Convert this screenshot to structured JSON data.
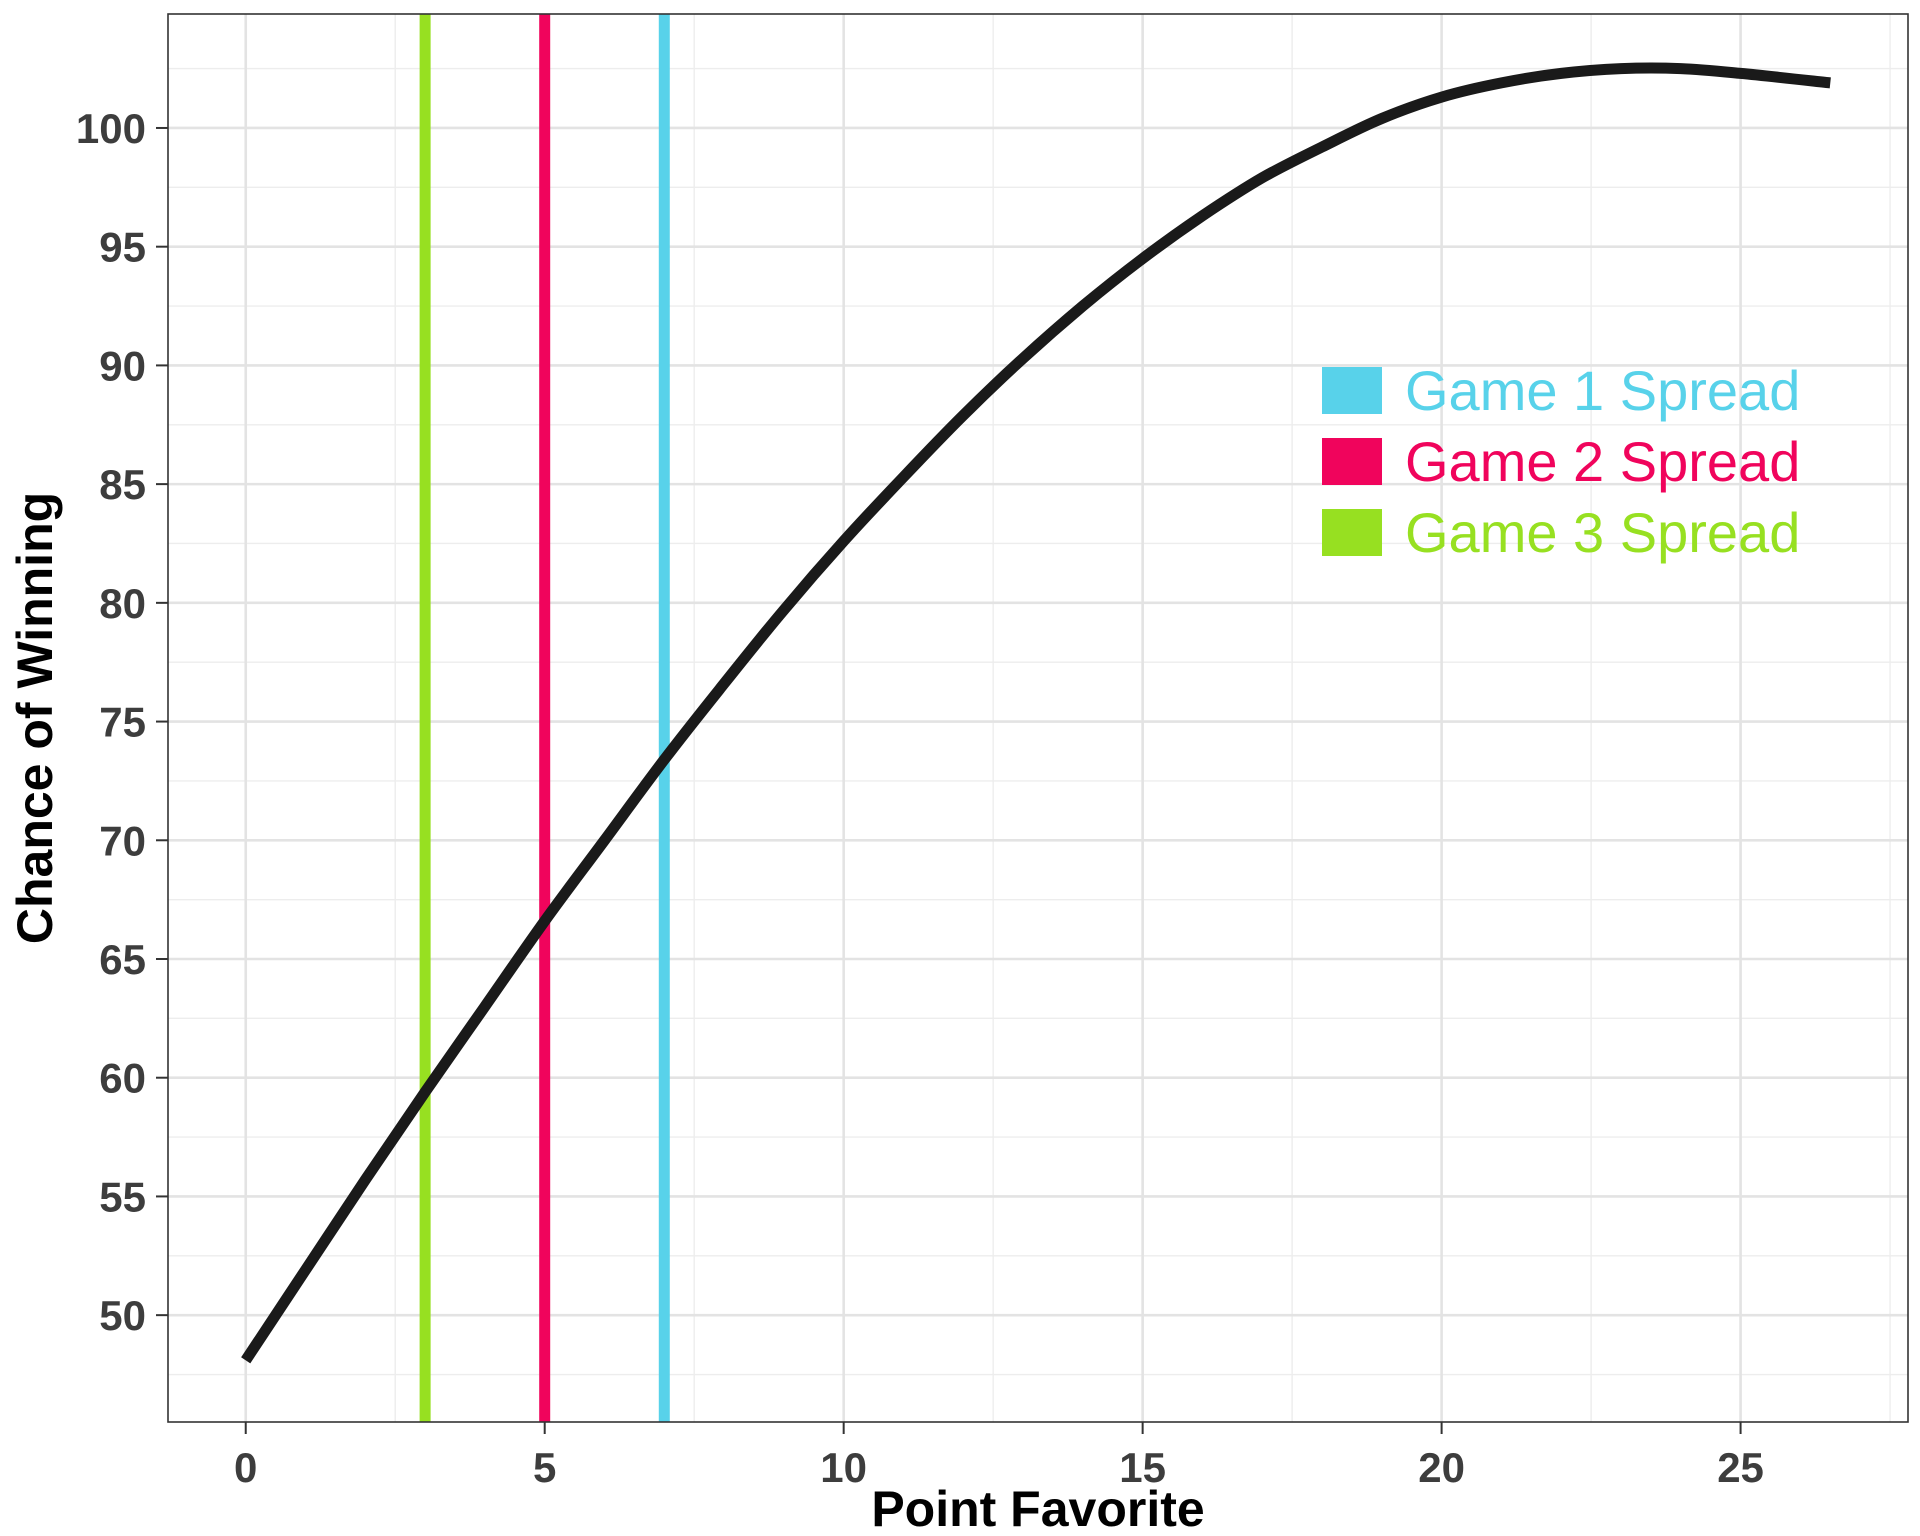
{
  "chart_data": {
    "type": "line",
    "title": "",
    "xlabel": "Point Favorite",
    "ylabel": "Chance of Winning",
    "xlim": [
      -1.3,
      27.8
    ],
    "ylim": [
      45.5,
      104.8
    ],
    "grid": true,
    "x_ticks": [
      "0",
      "5",
      "10",
      "15",
      "20",
      "25"
    ],
    "y_ticks": [
      "50",
      "55",
      "60",
      "65",
      "70",
      "75",
      "80",
      "85",
      "90",
      "95",
      "100"
    ],
    "series": [
      {
        "color": "#1a1a1a",
        "x": [
          0,
          1,
          2,
          3,
          4,
          5,
          6,
          7,
          8,
          9,
          10,
          11,
          12,
          13,
          14,
          15,
          16,
          17,
          18,
          19,
          20,
          21,
          22,
          23,
          24,
          25,
          26.5
        ],
        "y": [
          48.1,
          51.9,
          55.7,
          59.4,
          63.0,
          66.6,
          70.0,
          73.4,
          76.6,
          79.7,
          82.6,
          85.3,
          87.9,
          90.3,
          92.5,
          94.5,
          96.3,
          97.9,
          99.2,
          100.4,
          101.3,
          101.9,
          102.3,
          102.5,
          102.5,
          102.3,
          101.9
        ]
      }
    ],
    "reference_lines": [
      {
        "name": "Game 1 Spread",
        "x": 7,
        "color": "#58d2ea"
      },
      {
        "name": "Game 2 Spread",
        "x": 5,
        "color": "#f0045c"
      },
      {
        "name": "Game 3 Spread",
        "x": 3,
        "color": "#97e021"
      }
    ],
    "legend": {
      "placement": "top-right inside plot",
      "items": [
        {
          "label": "Game 1 Spread",
          "color": "#58d2ea"
        },
        {
          "label": "Game 2 Spread",
          "color": "#f0045c"
        },
        {
          "label": "Game 3 Spread",
          "color": "#97e021"
        }
      ]
    }
  }
}
